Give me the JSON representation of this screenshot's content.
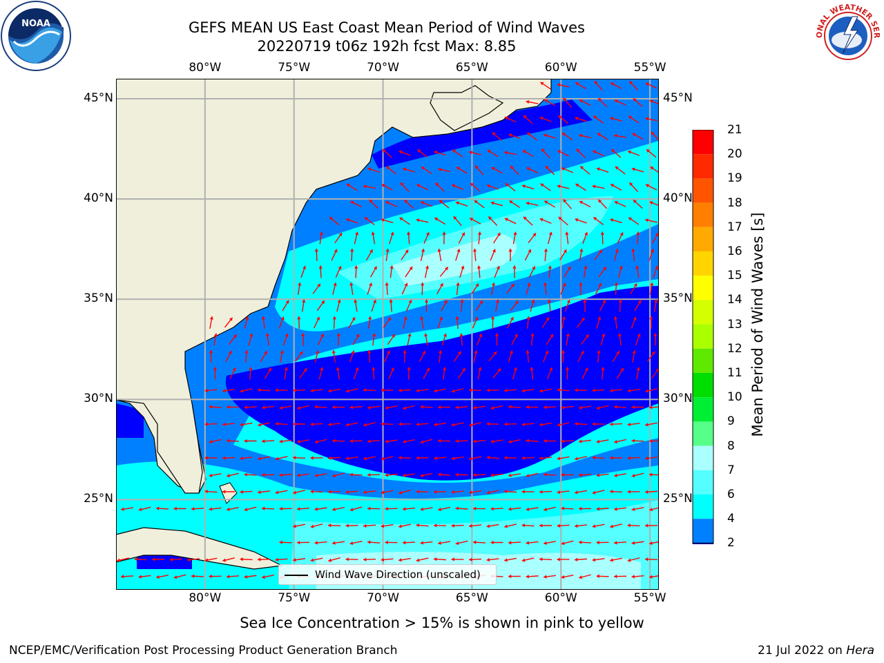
{
  "header": {
    "title_line1": "GEFS MEAN US East Coast Mean Period of Wind Waves",
    "title_line2": "20220719 t06z 192h fcst   Max: 8.85"
  },
  "logos": {
    "left": "NOAA",
    "right": "NATIONAL WEATHER SERVICE"
  },
  "map": {
    "lon_labels": [
      "80°W",
      "75°W",
      "70°W",
      "65°W",
      "60°W",
      "55°W"
    ],
    "lat_labels": [
      "45°N",
      "40°N",
      "35°N",
      "30°N",
      "25°N"
    ],
    "extent": {
      "lon": [
        -85,
        -54.5
      ],
      "lat": [
        20.5,
        46
      ]
    },
    "gridlines": true
  },
  "colorbar": {
    "label": "Mean Period of Wind Waves [s]",
    "ticks": [
      "21",
      "20",
      "19",
      "18",
      "17",
      "16",
      "15",
      "14",
      "13",
      "12",
      "11",
      "10",
      "9",
      "8",
      "7",
      "6",
      "4",
      "2"
    ],
    "colors": [
      "#ff0000",
      "#ff2a00",
      "#ff5500",
      "#ff7f00",
      "#ffaa00",
      "#ffd400",
      "#ffff00",
      "#d4ff00",
      "#aaff00",
      "#5fe800",
      "#00dd00",
      "#00ee33",
      "#55ff88",
      "#aaffff",
      "#55ffff",
      "#00ffff",
      "#0080ff"
    ],
    "under_color": "#0000ff"
  },
  "legend": {
    "label": "Wind Wave Direction (unscaled)"
  },
  "caption": "Sea Ice Concentration > 15% is shown in pink to yellow",
  "footer": {
    "left": "NCEP/EMC/Verification Post Processing Product Generation Branch",
    "right_prefix": "21 Jul 2022 on ",
    "right_host": "Hera"
  }
}
